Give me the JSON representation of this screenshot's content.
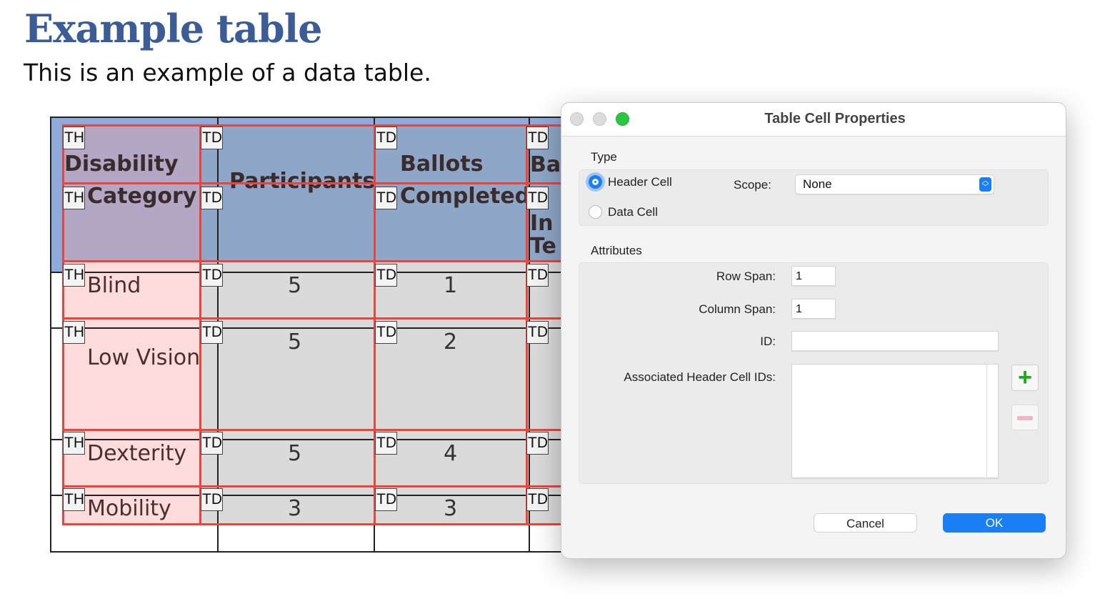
{
  "document": {
    "title": "Example table",
    "subtitle": "This is an example of a data table."
  },
  "table": {
    "header": {
      "col1": [
        "Disability",
        "Category"
      ],
      "col2": "Participants",
      "col3": [
        "Ballots",
        "Completed"
      ],
      "col4": [
        "Ba",
        "In",
        "Te"
      ]
    },
    "rows": [
      {
        "category": "Blind",
        "participants": "5",
        "ballots_completed": "1"
      },
      {
        "category": "Low Vision",
        "participants": "5",
        "ballots_completed": "2"
      },
      {
        "category": "Dexterity",
        "participants": "5",
        "ballots_completed": "4"
      },
      {
        "category": "Mobility",
        "participants": "3",
        "ballots_completed": "3"
      }
    ],
    "tag_labels": {
      "th": "TH",
      "td": "TD"
    }
  },
  "dialog": {
    "title": "Table Cell Properties",
    "type_section": "Type",
    "header_cell_label": "Header Cell",
    "data_cell_label": "Data Cell",
    "selected_type": "Header Cell",
    "scope_label": "Scope:",
    "scope_value": "None",
    "attributes_section": "Attributes",
    "row_span_label": "Row Span:",
    "row_span_value": "1",
    "column_span_label": "Column Span:",
    "column_span_value": "1",
    "id_label": "ID:",
    "id_value": "",
    "assoc_label": "Associated Header Cell IDs:",
    "add_icon": "plus-icon",
    "remove_icon": "minus-icon",
    "cancel_label": "Cancel",
    "ok_label": "OK",
    "accent_color": "#1a7ef5"
  }
}
